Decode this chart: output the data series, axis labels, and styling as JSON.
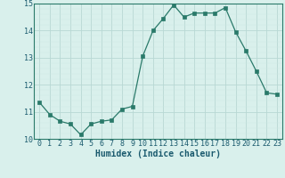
{
  "x": [
    0,
    1,
    2,
    3,
    4,
    5,
    6,
    7,
    8,
    9,
    10,
    11,
    12,
    13,
    14,
    15,
    16,
    17,
    18,
    19,
    20,
    21,
    22,
    23
  ],
  "y": [
    11.35,
    10.9,
    10.65,
    10.55,
    10.15,
    10.55,
    10.65,
    10.7,
    11.1,
    11.2,
    13.05,
    14.0,
    14.45,
    14.95,
    14.5,
    14.65,
    14.65,
    14.65,
    14.85,
    13.95,
    13.25,
    12.5,
    11.7,
    11.65
  ],
  "xlabel": "Humidex (Indice chaleur)",
  "ylim": [
    10.0,
    15.0
  ],
  "xlim": [
    -0.5,
    23.5
  ],
  "yticks": [
    10,
    11,
    12,
    13,
    14,
    15
  ],
  "xtick_labels": [
    "0",
    "1",
    "2",
    "3",
    "4",
    "5",
    "6",
    "7",
    "8",
    "9",
    "10",
    "11",
    "12",
    "13",
    "14",
    "15",
    "16",
    "17",
    "18",
    "19",
    "20",
    "21",
    "22",
    "23"
  ],
  "line_color": "#2a7a6a",
  "marker_color": "#2a7a6a",
  "bg_color": "#d9f0ec",
  "grid_major_color": "#b8d8d4",
  "grid_minor_color": "#cce8e4",
  "spine_color": "#2a7a6a",
  "font_color": "#1a5a6e",
  "xlabel_fontsize": 7.0,
  "tick_fontsize": 6.0
}
